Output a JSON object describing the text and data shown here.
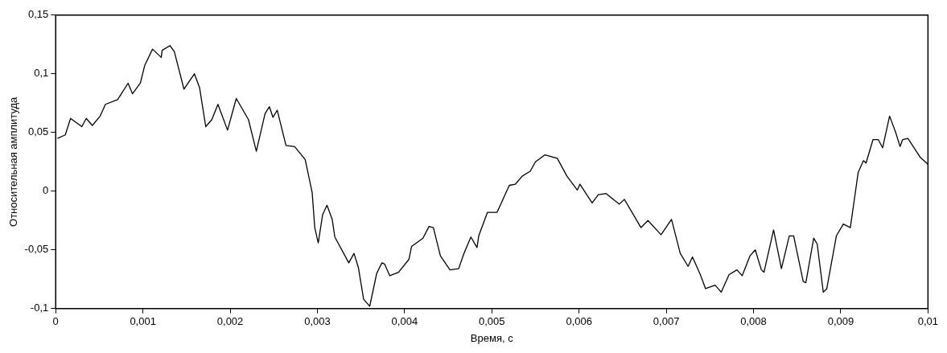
{
  "chart_data": {
    "type": "line",
    "xlabel": "Время, с",
    "ylabel": "Относительная амплитуда",
    "x": [
      2e-05,
      0.00011,
      0.00017,
      0.0003,
      0.00035,
      0.00042,
      0.00051,
      0.00057,
      0.00071,
      0.00083,
      0.00088,
      0.00097,
      0.00102,
      0.00111,
      0.00121,
      0.00122,
      0.00131,
      0.00136,
      0.00147,
      0.00159,
      0.00165,
      0.00172,
      0.00179,
      0.00186,
      0.00197,
      0.00207,
      0.00221,
      0.0023,
      0.0024,
      0.00245,
      0.00249,
      0.00254,
      0.00264,
      0.00274,
      0.00286,
      0.00294,
      0.00297,
      0.00301,
      0.00306,
      0.00311,
      0.00317,
      0.0032,
      0.00336,
      0.00342,
      0.00347,
      0.00353,
      0.0036,
      0.00368,
      0.00374,
      0.00377,
      0.00383,
      0.00393,
      0.00405,
      0.00408,
      0.00421,
      0.00428,
      0.00433,
      0.00441,
      0.00452,
      0.00462,
      0.00468,
      0.00476,
      0.00483,
      0.00485,
      0.00495,
      0.00506,
      0.0052,
      0.00527,
      0.00535,
      0.00544,
      0.0055,
      0.00561,
      0.00575,
      0.00586,
      0.00598,
      0.00601,
      0.00615,
      0.00622,
      0.00631,
      0.00646,
      0.00652,
      0.00671,
      0.00679,
      0.00694,
      0.00706,
      0.00716,
      0.00725,
      0.0073,
      0.00739,
      0.00745,
      0.00756,
      0.00763,
      0.00772,
      0.00781,
      0.00787,
      0.00796,
      0.00802,
      0.00809,
      0.00812,
      0.00823,
      0.00832,
      0.00841,
      0.00846,
      0.00857,
      0.0086,
      0.00869,
      0.00873,
      0.0088,
      0.00884,
      0.00895,
      0.00903,
      0.00911,
      0.0092,
      0.00926,
      0.00929,
      0.00937,
      0.00943,
      0.00948,
      0.00956,
      0.00963,
      0.00968,
      0.00971,
      0.00977,
      0.00991,
      0.01
    ],
    "series": [
      {
        "color": "#000000",
        "values": [
          0.045,
          0.048,
          0.062,
          0.055,
          0.062,
          0.056,
          0.064,
          0.074,
          0.078,
          0.092,
          0.083,
          0.092,
          0.107,
          0.121,
          0.114,
          0.12,
          0.124,
          0.119,
          0.087,
          0.1,
          0.088,
          0.055,
          0.061,
          0.074,
          0.052,
          0.079,
          0.061,
          0.034,
          0.066,
          0.072,
          0.063,
          0.069,
          0.039,
          0.038,
          0.027,
          -0.001,
          -0.031,
          -0.044,
          -0.02,
          -0.012,
          -0.024,
          -0.039,
          -0.061,
          -0.053,
          -0.065,
          -0.092,
          -0.098,
          -0.07,
          -0.061,
          -0.062,
          -0.072,
          -0.069,
          -0.058,
          -0.047,
          -0.04,
          -0.03,
          -0.031,
          -0.055,
          -0.067,
          -0.066,
          -0.053,
          -0.039,
          -0.048,
          -0.038,
          -0.018,
          -0.018,
          0.005,
          0.006,
          0.013,
          0.017,
          0.025,
          0.031,
          0.028,
          0.013,
          0.001,
          0.006,
          -0.01,
          -0.003,
          -0.002,
          -0.011,
          -0.007,
          -0.031,
          -0.025,
          -0.037,
          -0.024,
          -0.053,
          -0.064,
          -0.056,
          -0.071,
          -0.083,
          -0.08,
          -0.086,
          -0.071,
          -0.067,
          -0.072,
          -0.055,
          -0.05,
          -0.067,
          -0.069,
          -0.033,
          -0.066,
          -0.038,
          -0.038,
          -0.077,
          -0.078,
          -0.04,
          -0.045,
          -0.086,
          -0.083,
          -0.038,
          -0.028,
          -0.031,
          0.016,
          0.026,
          0.024,
          0.044,
          0.044,
          0.037,
          0.064,
          0.05,
          0.038,
          0.044,
          0.045,
          0.029,
          0.023
        ]
      }
    ],
    "xlim": [
      0,
      0.01
    ],
    "xticks": [
      {
        "value": 0,
        "label": "0"
      },
      {
        "value": 0.001,
        "label": "0,001"
      },
      {
        "value": 0.002,
        "label": "0,002"
      },
      {
        "value": 0.003,
        "label": "0,003"
      },
      {
        "value": 0.004,
        "label": "0,004"
      },
      {
        "value": 0.005,
        "label": "0,005"
      },
      {
        "value": 0.006,
        "label": "0,006"
      },
      {
        "value": 0.007,
        "label": "0,007"
      },
      {
        "value": 0.008,
        "label": "0,008"
      },
      {
        "value": 0.009,
        "label": "0,009"
      },
      {
        "value": 0.01,
        "label": "0,01"
      }
    ],
    "ylim": [
      -0.1,
      0.15
    ],
    "yticks": [
      {
        "value": -0.1,
        "label": "-0,1"
      },
      {
        "value": -0.05,
        "label": "-0,05"
      },
      {
        "value": 0,
        "label": "0"
      },
      {
        "value": 0.05,
        "label": "0,05"
      },
      {
        "value": 0.1,
        "label": "0,1"
      },
      {
        "value": 0.15,
        "label": "0,15"
      }
    ],
    "grid": false,
    "legend": false,
    "marker": "none",
    "line_style": "solid"
  }
}
